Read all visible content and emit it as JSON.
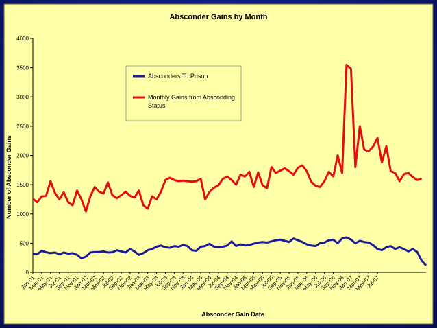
{
  "chart_data": {
    "type": "line",
    "title": "Absconder Gains by Month",
    "xlabel": "Absconder Gain Date",
    "ylabel": "Number of Absconder Gains",
    "ylim": [
      0,
      4000
    ],
    "yticks": [
      0,
      500,
      1000,
      1500,
      2000,
      2500,
      3000,
      3500,
      4000
    ],
    "x_tick_labels": [
      "Jan-01",
      "Mar-01",
      "May-01",
      "Jul-01",
      "Sep-01",
      "Nov-01",
      "Jan-02",
      "Mar-02",
      "May-02",
      "Jul-02",
      "Sep-02",
      "Nov-02",
      "Jan-03",
      "Mar-03",
      "May-03",
      "Jul-03",
      "Sep-03",
      "Nov-03",
      "Jan-04",
      "Mar-04",
      "May-04",
      "Jul-04",
      "Sep-04",
      "Nov-04",
      "Jan-05",
      "Mar-05",
      "May-05",
      "Jul-05",
      "Sep-05",
      "Nov-05",
      "Jan-06",
      "Mar-06",
      "May-06",
      "Jul-06",
      "Sep-06",
      "Nov-06",
      "Jan-07",
      "Mar-07",
      "May-07",
      "Jul-07"
    ],
    "x_start": "Jan-01",
    "series": [
      {
        "name": "Absconders To Prison",
        "color": "#1a1a9a",
        "values": [
          320,
          310,
          370,
          345,
          330,
          340,
          310,
          340,
          320,
          330,
          300,
          240,
          270,
          340,
          350,
          350,
          360,
          340,
          345,
          380,
          360,
          340,
          400,
          360,
          300,
          330,
          380,
          400,
          440,
          460,
          430,
          420,
          450,
          440,
          470,
          450,
          380,
          370,
          440,
          450,
          490,
          440,
          430,
          440,
          460,
          530,
          450,
          480,
          460,
          470,
          490,
          510,
          520,
          510,
          530,
          550,
          560,
          540,
          520,
          580,
          550,
          520,
          480,
          460,
          450,
          500,
          510,
          550,
          560,
          500,
          580,
          600,
          560,
          500,
          540,
          520,
          510,
          470,
          400,
          380,
          430,
          450,
          400,
          430,
          400,
          360,
          400,
          350,
          200,
          120
        ]
      },
      {
        "name": "Monthly Gains from Absconding Status",
        "color": "#e01010",
        "values": [
          1260,
          1200,
          1300,
          1310,
          1560,
          1360,
          1250,
          1370,
          1200,
          1150,
          1400,
          1250,
          1040,
          1300,
          1460,
          1380,
          1350,
          1540,
          1320,
          1270,
          1320,
          1380,
          1310,
          1280,
          1400,
          1150,
          1090,
          1300,
          1250,
          1380,
          1580,
          1620,
          1580,
          1560,
          1570,
          1560,
          1550,
          1560,
          1600,
          1250,
          1380,
          1450,
          1490,
          1600,
          1640,
          1580,
          1500,
          1670,
          1640,
          1720,
          1460,
          1710,
          1490,
          1440,
          1800,
          1700,
          1740,
          1780,
          1730,
          1670,
          1790,
          1830,
          1730,
          1550,
          1480,
          1460,
          1560,
          1720,
          1640,
          2000,
          1700,
          3550,
          3480,
          1800,
          2500,
          2100,
          2070,
          2150,
          2300,
          1880,
          2160,
          1730,
          1700,
          1560,
          1680,
          1700,
          1630,
          1580,
          1600
        ]
      }
    ],
    "legend": {
      "placement": "upper-center-left inside plot"
    },
    "grid": false,
    "colors": {
      "plot_bg": "#ffffa8",
      "page_bg": "#0d1a78",
      "title_box": "#1c2db8",
      "axis_text": "#000000"
    }
  }
}
